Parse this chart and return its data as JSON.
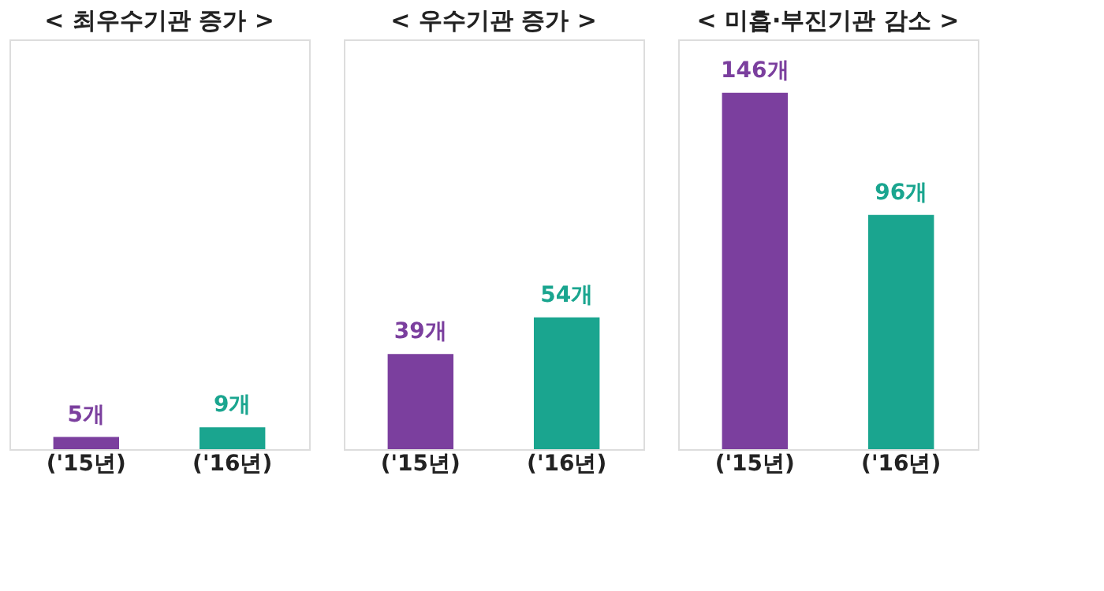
{
  "chart_data": [
    {
      "type": "bar",
      "title": "< 최우수기관 증가 >",
      "categories": [
        "('15년)",
        "('16년)"
      ],
      "values": [
        5,
        9
      ],
      "colors": [
        "#7b3f9e",
        "#1aa58f"
      ],
      "value_labels": [
        "5개",
        "9개"
      ]
    },
    {
      "type": "bar",
      "title": "< 우수기관 증가 >",
      "categories": [
        "('15년)",
        "('16년)"
      ],
      "values": [
        39,
        54
      ],
      "colors": [
        "#7b3f9e",
        "#1aa58f"
      ],
      "value_labels": [
        "39개",
        "54개"
      ]
    },
    {
      "type": "bar",
      "title": "< 미흡·부진기관 감소 >",
      "categories": [
        "('15년)",
        "('16년)"
      ],
      "values": [
        146,
        96
      ],
      "colors": [
        "#7b3f9e",
        "#1aa58f"
      ],
      "value_labels": [
        "146개",
        "96개"
      ]
    }
  ]
}
